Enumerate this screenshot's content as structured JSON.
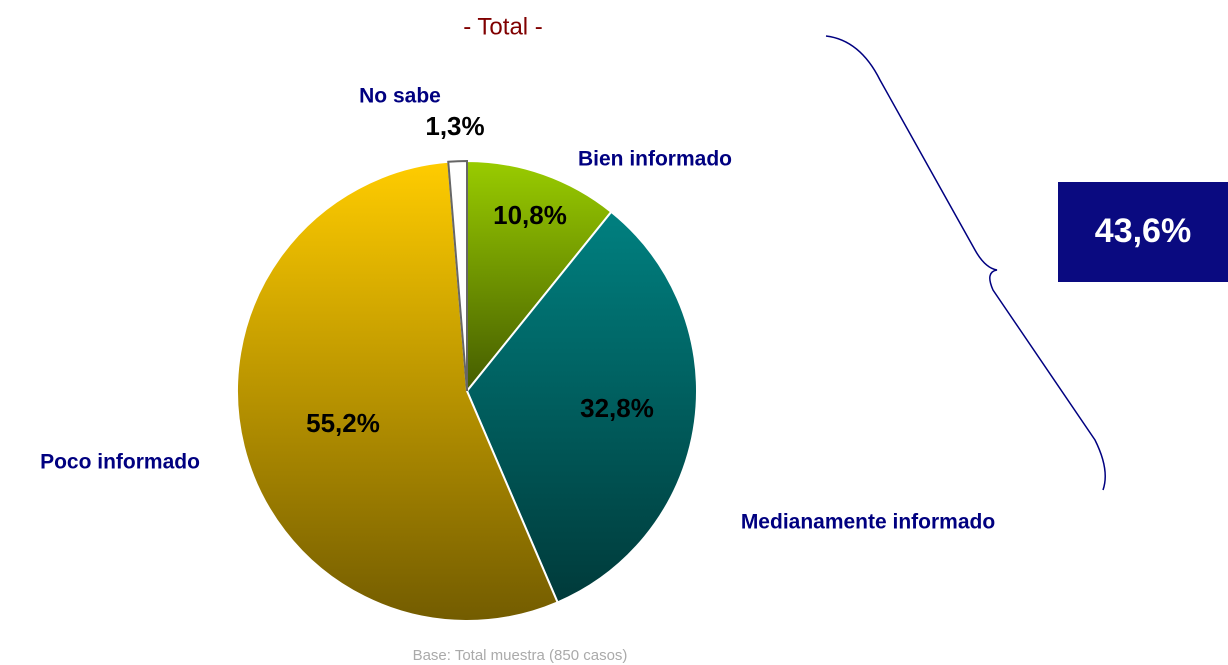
{
  "chart_data": {
    "type": "pie",
    "title": "- Total -",
    "categories": [
      "Bien informado",
      "Medianamente informado",
      "Poco informado",
      "No sabe"
    ],
    "values": [
      10.8,
      32.8,
      55.2,
      1.3
    ],
    "value_labels": [
      "10,8%",
      "32,8%",
      "55,2%",
      "1,3%"
    ],
    "colors": [
      "#99cc00",
      "#008080",
      "#ffcc00",
      "#ffffff"
    ],
    "annotation": "43,6%",
    "footnote": "Base: Total muestra (850 casos)"
  }
}
